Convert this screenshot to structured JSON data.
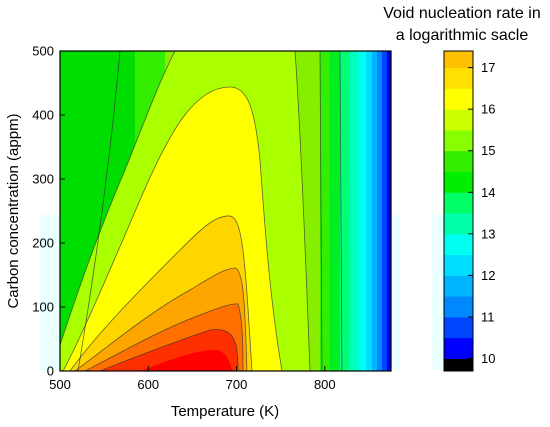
{
  "chart_data": {
    "type": "heatmap",
    "xlabel": "Temperature (K)",
    "ylabel": "Carbon concentration (appm)",
    "xlim": [
      500,
      875
    ],
    "ylim": [
      0,
      500
    ],
    "xticks": [
      "500",
      "600",
      "700",
      "800"
    ],
    "yticks": [
      "0",
      "100",
      "200",
      "300",
      "400",
      "500"
    ],
    "colorbar": {
      "title_lines": [
        "Void nucleation rate in",
        "a logarithmic sacle"
      ],
      "range": [
        9.7,
        17.4
      ],
      "ticks": [
        "10",
        "11",
        "12",
        "13",
        "14",
        "15",
        "16",
        "17"
      ],
      "level_step": 0.5,
      "colors_low_to_high": [
        "#000000",
        "#0000ff",
        "#0044ff",
        "#0088ff",
        "#00b4ff",
        "#00ddff",
        "#00ffee",
        "#00ffaa",
        "#00ff66",
        "#00ee00",
        "#33ee00",
        "#88ff00",
        "#ccff00",
        "#ffff00",
        "#ffe000",
        "#ffc000",
        "#ffa000",
        "#ff8000",
        "#ff5500",
        "#ff2a00",
        "#ff0000"
      ]
    },
    "contour_lines": true,
    "peak": {
      "temperature": 660,
      "carbon": 0,
      "value": 17.3
    },
    "contours_on_zero_axis_K": [
      {
        "level": 17.0,
        "x_range": [
          590,
          710
        ]
      },
      {
        "level": 16.5,
        "x_range": [
          552,
          718
        ]
      },
      {
        "level": 16.0,
        "x_range": [
          528,
          724
        ]
      },
      {
        "level": 15.5,
        "x_range": [
          515,
          733
        ]
      },
      {
        "level": 15.0,
        "x_range": [
          507,
          768
        ]
      },
      {
        "level": 14.5,
        "x_range": [
          502,
          795
        ]
      },
      {
        "level": 14.0,
        "x_range": [
          500,
          822
        ]
      }
    ],
    "contour_tops_appm": [
      {
        "level": 17.0,
        "temperature": 660,
        "carbon": 30
      },
      {
        "level": 16.5,
        "temperature": 670,
        "carbon": 60
      },
      {
        "level": 16.0,
        "temperature": 675,
        "carbon": 105
      },
      {
        "level": 15.5,
        "temperature": 680,
        "carbon": 165
      },
      {
        "level": 15.0,
        "temperature": 690,
        "carbon": 445
      }
    ]
  }
}
